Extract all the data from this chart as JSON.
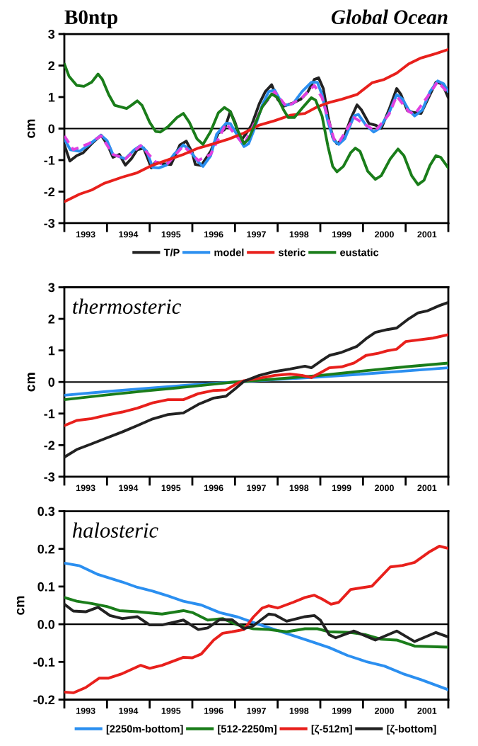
{
  "chart_data": [
    {
      "type": "line",
      "title": "B0ntp",
      "subtitle": "Global Ocean",
      "ylabel": "cm",
      "xlim": [
        1993,
        2002
      ],
      "xticks": [
        {
          "value": 1993,
          "label": null
        },
        {
          "value": 1994,
          "label": null
        },
        {
          "value": 1995,
          "label": null
        },
        {
          "value": 1996,
          "label": null
        },
        {
          "value": 1997,
          "label": null
        },
        {
          "value": 1998,
          "label": null
        },
        {
          "value": 1999,
          "label": null
        },
        {
          "value": 2000,
          "label": null
        },
        {
          "value": 2001,
          "label": null
        },
        {
          "value": 2002,
          "label": null
        },
        {
          "value": 1993.5,
          "label": "1993"
        },
        {
          "value": 1994.5,
          "label": "1994"
        },
        {
          "value": 1995.5,
          "label": "1995"
        },
        {
          "value": 1996.5,
          "label": "1996"
        },
        {
          "value": 1997.5,
          "label": "1997"
        },
        {
          "value": 1998.5,
          "label": "1998"
        },
        {
          "value": 1999.5,
          "label": "1999"
        },
        {
          "value": 2000.5,
          "label": "2000"
        },
        {
          "value": 2001.5,
          "label": "2001"
        }
      ],
      "ylim": [
        -3,
        3
      ],
      "yticks": [
        -3,
        -2,
        -1,
        0,
        1,
        2,
        3
      ],
      "ref_lines": [
        {
          "axis": "y",
          "value": 0,
          "color": "#000000"
        }
      ],
      "legend": "bottom",
      "series": [
        {
          "name": "T/P",
          "color": "#222222",
          "x": [
            1993.0,
            1993.13,
            1993.29,
            1993.44,
            1993.64,
            1993.86,
            1994.0,
            1994.14,
            1994.29,
            1994.43,
            1994.57,
            1994.71,
            1994.86,
            1995.04,
            1995.14,
            1995.29,
            1995.5,
            1995.71,
            1995.86,
            1996.0,
            1996.07,
            1996.21,
            1996.43,
            1996.61,
            1996.75,
            1996.89,
            1997.0,
            1997.14,
            1997.25,
            1997.39,
            1997.57,
            1997.71,
            1997.86,
            1998.0,
            1998.14,
            1998.36,
            1998.54,
            1998.71,
            1998.86,
            1998.96,
            1999.07,
            1999.18,
            1999.29,
            1999.39,
            1999.54,
            1999.71,
            1999.86,
            1999.96,
            2000.14,
            2000.29,
            2000.43,
            2000.61,
            2000.79,
            2000.89,
            2001.04,
            2001.18,
            2001.36,
            2001.5,
            2001.71,
            2001.86,
            2002.0
          ],
          "values": [
            -0.52,
            -1.03,
            -0.86,
            -0.77,
            -0.48,
            -0.21,
            -0.48,
            -0.91,
            -0.82,
            -1.16,
            -0.96,
            -0.67,
            -0.62,
            -1.25,
            -1.06,
            -1.11,
            -1.14,
            -0.52,
            -0.4,
            -0.77,
            -1.14,
            -1.17,
            -0.72,
            -0.14,
            -0.04,
            0.54,
            0.2,
            -0.38,
            -0.18,
            0.11,
            0.79,
            1.17,
            1.39,
            0.93,
            0.71,
            0.81,
            0.93,
            1.17,
            1.56,
            1.61,
            1.27,
            0.4,
            -0.28,
            -0.48,
            -0.33,
            0.3,
            0.75,
            0.6,
            0.16,
            0.11,
            0.01,
            0.6,
            1.27,
            1.08,
            0.57,
            0.51,
            0.48,
            0.88,
            1.47,
            1.42,
            0.98
          ]
        },
        {
          "name": "model",
          "color": "#2b8ff0",
          "x": [
            1993.0,
            1993.14,
            1993.36,
            1993.57,
            1993.86,
            1994.0,
            1994.14,
            1994.43,
            1994.64,
            1994.79,
            1994.93,
            1995.07,
            1995.21,
            1995.39,
            1995.57,
            1995.79,
            1995.93,
            1996.14,
            1996.25,
            1996.43,
            1996.57,
            1996.79,
            1996.89,
            1997.04,
            1997.21,
            1997.32,
            1997.46,
            1997.64,
            1997.79,
            1997.93,
            1998.07,
            1998.18,
            1998.36,
            1998.57,
            1998.79,
            1998.93,
            1999.04,
            1999.18,
            1999.32,
            1999.43,
            1999.57,
            1999.79,
            1999.89,
            2000.07,
            2000.25,
            2000.39,
            2000.61,
            2000.79,
            2000.93,
            2001.07,
            2001.21,
            2001.39,
            2001.57,
            2001.75,
            2001.89,
            2002.0
          ],
          "values": [
            -0.33,
            -0.67,
            -0.72,
            -0.52,
            -0.21,
            -0.38,
            -0.82,
            -0.96,
            -0.67,
            -0.54,
            -0.72,
            -1.23,
            -1.25,
            -1.16,
            -0.82,
            -0.52,
            -0.67,
            -1.06,
            -1.2,
            -0.86,
            -0.18,
            0.17,
            0.16,
            -0.18,
            -0.57,
            -0.48,
            0.01,
            0.75,
            1.17,
            1.22,
            0.88,
            0.74,
            0.79,
            1.17,
            1.47,
            1.47,
            1.08,
            0.2,
            -0.38,
            -0.5,
            -0.33,
            0.4,
            0.45,
            0.11,
            -0.11,
            0.01,
            0.5,
            1.08,
            0.93,
            0.59,
            0.4,
            0.59,
            1.17,
            1.51,
            1.42,
            1.17
          ]
        },
        {
          "color": "#e040e0",
          "line_style": "dashed",
          "x": [
            1993.0,
            1993.21,
            1993.57,
            1993.86,
            1994.14,
            1994.43,
            1994.79,
            1995.14,
            1995.39,
            1995.79,
            1996.14,
            1996.43,
            1996.79,
            1997.21,
            1997.64,
            1997.93,
            1998.21,
            1998.57,
            1998.86,
            1999.04,
            1999.32,
            1999.43,
            1999.79,
            2000.07,
            2000.29,
            2000.61,
            2000.79,
            2001.07,
            2001.21,
            2001.57,
            2001.75,
            2002.0
          ],
          "values": [
            -0.23,
            -0.67,
            -0.48,
            -0.23,
            -0.82,
            -0.96,
            -0.54,
            -1.06,
            -1.16,
            -0.55,
            -1.01,
            -0.82,
            0.16,
            -0.52,
            0.69,
            1.17,
            0.69,
            0.98,
            1.37,
            0.98,
            -0.33,
            -0.45,
            0.35,
            0.11,
            -0.07,
            0.45,
            1.03,
            0.54,
            0.45,
            1.12,
            1.49,
            1.12
          ]
        },
        {
          "name": "steric",
          "color": "#e8201c",
          "x": [
            1993.0,
            1993.36,
            1993.64,
            1993.93,
            1994.36,
            1994.71,
            1995.07,
            1995.5,
            1995.79,
            1996.14,
            1996.5,
            1996.86,
            1997.21,
            1997.57,
            1997.93,
            1998.29,
            1998.64,
            1998.93,
            1999.21,
            1999.5,
            1999.86,
            2000.21,
            2000.5,
            2000.79,
            2001.07,
            2001.36,
            2001.71,
            2002.0
          ],
          "values": [
            -2.32,
            -2.08,
            -1.95,
            -1.74,
            -1.54,
            -1.4,
            -1.16,
            -0.96,
            -0.82,
            -0.62,
            -0.48,
            -0.33,
            -0.14,
            0.11,
            0.25,
            0.42,
            0.48,
            0.69,
            0.83,
            0.93,
            1.08,
            1.45,
            1.56,
            1.76,
            2.05,
            2.24,
            2.38,
            2.51
          ]
        },
        {
          "name": "eustatic",
          "color": "#1a7d1a",
          "x": [
            1993.0,
            1993.11,
            1993.29,
            1993.46,
            1993.64,
            1993.79,
            1993.89,
            1994.04,
            1994.18,
            1994.46,
            1994.57,
            1994.71,
            1994.82,
            1995.0,
            1995.14,
            1995.25,
            1995.43,
            1995.64,
            1995.79,
            1995.93,
            1996.11,
            1996.25,
            1996.43,
            1996.61,
            1996.75,
            1996.89,
            1997.04,
            1997.21,
            1997.32,
            1997.46,
            1997.64,
            1997.86,
            1998.0,
            1998.14,
            1998.25,
            1998.39,
            1998.57,
            1998.79,
            1998.89,
            1999.04,
            1999.18,
            1999.29,
            1999.39,
            1999.54,
            1999.71,
            1999.82,
            1999.93,
            2000.11,
            2000.29,
            2000.43,
            2000.64,
            2000.82,
            2000.96,
            2001.14,
            2001.29,
            2001.43,
            2001.57,
            2001.71,
            2001.82,
            2002.0
          ],
          "values": [
            2.05,
            1.66,
            1.37,
            1.34,
            1.47,
            1.73,
            1.56,
            1.08,
            0.74,
            0.64,
            0.74,
            0.88,
            0.74,
            0.2,
            -0.09,
            -0.11,
            0.06,
            0.35,
            0.48,
            0.2,
            -0.33,
            -0.5,
            -0.09,
            0.5,
            0.67,
            0.54,
            0.01,
            -0.48,
            -0.33,
            0.11,
            0.69,
            1.1,
            0.98,
            0.59,
            0.35,
            0.35,
            0.64,
            0.98,
            0.9,
            0.4,
            -0.57,
            -1.2,
            -1.37,
            -1.2,
            -0.77,
            -0.62,
            -0.72,
            -1.35,
            -1.61,
            -1.49,
            -0.96,
            -0.65,
            -0.86,
            -1.49,
            -1.78,
            -1.64,
            -1.17,
            -0.86,
            -0.91,
            -1.25
          ]
        }
      ]
    },
    {
      "type": "line",
      "ylabel": "cm",
      "annotations": [
        "thermosteric"
      ],
      "xlim": [
        1993,
        2002
      ],
      "xticks": [
        {
          "value": 1993,
          "label": null
        },
        {
          "value": 1994,
          "label": null
        },
        {
          "value": 1995,
          "label": null
        },
        {
          "value": 1996,
          "label": null
        },
        {
          "value": 1997,
          "label": null
        },
        {
          "value": 1998,
          "label": null
        },
        {
          "value": 1999,
          "label": null
        },
        {
          "value": 2000,
          "label": null
        },
        {
          "value": 2001,
          "label": null
        },
        {
          "value": 2002,
          "label": null
        },
        {
          "value": 1993.5,
          "label": "1993"
        },
        {
          "value": 1994.5,
          "label": "1994"
        },
        {
          "value": 1995.5,
          "label": "1995"
        },
        {
          "value": 1996.5,
          "label": "1996"
        },
        {
          "value": 1997.5,
          "label": "1997"
        },
        {
          "value": 1998.5,
          "label": "1998"
        },
        {
          "value": 1999.5,
          "label": "1999"
        },
        {
          "value": 2000.5,
          "label": "2000"
        },
        {
          "value": 2001.5,
          "label": "2001"
        }
      ],
      "ylim": [
        -3,
        3
      ],
      "yticks": [
        -3,
        -2,
        -1,
        0,
        1,
        2,
        3
      ],
      "ref_lines": [
        {
          "axis": "y",
          "value": 0,
          "color": "#000000"
        }
      ],
      "series": [
        {
          "color": "#2b8ff0",
          "x": [
            1993.0,
            1993.93,
            1994.93,
            1996.0,
            1997.0,
            1998.0,
            1999.0,
            2000.0,
            2001.0,
            2002.0
          ],
          "values": [
            -0.42,
            -0.31,
            -0.2,
            -0.09,
            0.0,
            0.08,
            0.16,
            0.25,
            0.35,
            0.45
          ]
        },
        {
          "color": "#1a7d1a",
          "x": [
            1993.0,
            1993.93,
            1994.93,
            1996.0,
            1997.0,
            1998.0,
            1999.0,
            2000.0,
            2001.0,
            2002.0
          ],
          "values": [
            -0.56,
            -0.42,
            -0.28,
            -0.14,
            0.0,
            0.1,
            0.21,
            0.35,
            0.48,
            0.6
          ]
        },
        {
          "color": "#e8201c",
          "x": [
            1993.0,
            1993.29,
            1993.64,
            1994.0,
            1994.36,
            1994.71,
            1995.07,
            1995.43,
            1995.79,
            1996.14,
            1996.5,
            1996.79,
            1997.07,
            1997.21,
            1997.57,
            1997.93,
            1998.29,
            1998.57,
            1998.79,
            1999.0,
            1999.21,
            1999.5,
            1999.79,
            2000.07,
            2000.36,
            2000.57,
            2000.79,
            2001.0,
            2001.29,
            2001.64,
            2002.0
          ],
          "values": [
            -1.38,
            -1.22,
            -1.16,
            -1.05,
            -0.95,
            -0.83,
            -0.66,
            -0.56,
            -0.56,
            -0.37,
            -0.27,
            -0.25,
            -0.03,
            0.04,
            0.12,
            0.21,
            0.25,
            0.21,
            0.14,
            0.29,
            0.45,
            0.48,
            0.6,
            0.84,
            0.91,
            0.99,
            1.04,
            1.28,
            1.33,
            1.39,
            1.5
          ]
        },
        {
          "color": "#222222",
          "x": [
            1993.0,
            1993.29,
            1993.64,
            1994.0,
            1994.36,
            1994.71,
            1995.07,
            1995.43,
            1995.79,
            1996.14,
            1996.5,
            1996.79,
            1997.0,
            1997.21,
            1997.57,
            1997.93,
            1998.29,
            1998.64,
            1998.79,
            1999.0,
            1999.21,
            1999.5,
            1999.86,
            2000.07,
            2000.29,
            2000.57,
            2000.79,
            2001.07,
            2001.29,
            2001.5,
            2001.79,
            2002.0
          ],
          "values": [
            -2.38,
            -2.14,
            -1.96,
            -1.77,
            -1.58,
            -1.38,
            -1.17,
            -1.03,
            -0.98,
            -0.71,
            -0.51,
            -0.45,
            -0.22,
            0.02,
            0.21,
            0.33,
            0.41,
            0.5,
            0.45,
            0.65,
            0.84,
            0.94,
            1.13,
            1.37,
            1.57,
            1.66,
            1.71,
            2.0,
            2.19,
            2.25,
            2.42,
            2.52
          ]
        }
      ]
    },
    {
      "type": "line",
      "ylabel": "cm",
      "annotations": [
        "halosteric"
      ],
      "xlim": [
        1993,
        2002
      ],
      "xticks": [
        {
          "value": 1993,
          "label": null
        },
        {
          "value": 1994,
          "label": null
        },
        {
          "value": 1995,
          "label": null
        },
        {
          "value": 1996,
          "label": null
        },
        {
          "value": 1997,
          "label": null
        },
        {
          "value": 1998,
          "label": null
        },
        {
          "value": 1999,
          "label": null
        },
        {
          "value": 2000,
          "label": null
        },
        {
          "value": 2001,
          "label": null
        },
        {
          "value": 2002,
          "label": null
        },
        {
          "value": 1993.5,
          "label": "1993"
        },
        {
          "value": 1994.5,
          "label": "1994"
        },
        {
          "value": 1995.5,
          "label": "1995"
        },
        {
          "value": 1996.5,
          "label": "1996"
        },
        {
          "value": 1997.5,
          "label": "1997"
        },
        {
          "value": 1998.5,
          "label": "1998"
        },
        {
          "value": 1999.5,
          "label": "1999"
        },
        {
          "value": 2000.5,
          "label": "2000"
        },
        {
          "value": 2001.5,
          "label": "2001"
        }
      ],
      "ylim": [
        -0.2,
        0.3
      ],
      "yticks": [
        -0.2,
        -0.1,
        {
          "value": 0,
          "label": "0.0"
        },
        0.1,
        0.2,
        0.3
      ],
      "ref_lines": [
        {
          "axis": "y",
          "value": 0,
          "color": "#000000"
        }
      ],
      "legend": "bottom",
      "series": [
        {
          "name": "[2250m-bottom]",
          "color": "#2b8ff0",
          "x": [
            1993.0,
            1993.36,
            1993.79,
            1994.36,
            1994.71,
            1995.07,
            1995.43,
            1995.79,
            1996.21,
            1996.64,
            1997.07,
            1997.5,
            1997.93,
            1998.36,
            1998.79,
            1999.21,
            1999.64,
            2000.07,
            2000.5,
            2000.93,
            2001.36,
            2002.0
          ],
          "values": [
            0.162,
            0.155,
            0.132,
            0.112,
            0.098,
            0.088,
            0.075,
            0.061,
            0.051,
            0.031,
            0.019,
            0.002,
            -0.014,
            -0.03,
            -0.046,
            -0.062,
            -0.083,
            -0.099,
            -0.111,
            -0.131,
            -0.147,
            -0.174
          ]
        },
        {
          "name": "[512-2250m]",
          "color": "#1a7d1a",
          "x": [
            1993.0,
            1993.29,
            1993.64,
            1994.0,
            1994.29,
            1994.71,
            1995.29,
            1995.79,
            1996.0,
            1996.36,
            1996.71,
            1997.07,
            1997.43,
            1997.79,
            1998.21,
            1998.64,
            1998.93,
            1999.21,
            1999.71,
            2000.07,
            2000.43,
            2000.79,
            2001.21,
            2002.0
          ],
          "values": [
            0.071,
            0.061,
            0.055,
            0.047,
            0.036,
            0.033,
            0.027,
            0.036,
            0.031,
            0.011,
            0.015,
            -0.002,
            -0.012,
            -0.014,
            -0.02,
            -0.012,
            -0.012,
            -0.02,
            -0.022,
            -0.028,
            -0.04,
            -0.042,
            -0.058,
            -0.061
          ]
        },
        {
          "name": "[ζ-512m]",
          "color": "#e8201c",
          "x": [
            1993.0,
            1993.21,
            1993.5,
            1993.82,
            1994.04,
            1994.36,
            1994.79,
            1995.0,
            1995.29,
            1995.79,
            1996.0,
            1996.21,
            1996.5,
            1996.71,
            1996.93,
            1997.21,
            1997.43,
            1997.64,
            1997.79,
            1998.0,
            1998.36,
            1998.64,
            1998.86,
            1999.04,
            1999.25,
            1999.43,
            1999.71,
            1999.93,
            2000.21,
            2000.64,
            2000.93,
            2001.21,
            2001.57,
            2001.79,
            2002.0
          ],
          "values": [
            -0.18,
            -0.182,
            -0.168,
            -0.143,
            -0.143,
            -0.131,
            -0.109,
            -0.117,
            -0.109,
            -0.088,
            -0.089,
            -0.079,
            -0.042,
            -0.024,
            -0.02,
            -0.014,
            0.019,
            0.043,
            0.049,
            0.043,
            0.058,
            0.071,
            0.077,
            0.067,
            0.053,
            0.058,
            0.092,
            0.096,
            0.101,
            0.152,
            0.156,
            0.164,
            0.193,
            0.207,
            0.201
          ]
        },
        {
          "name": "[ζ-bottom]",
          "color": "#222222",
          "x": [
            1993.0,
            1993.21,
            1993.5,
            1993.79,
            1994.07,
            1994.36,
            1994.71,
            1995.0,
            1995.29,
            1995.79,
            1996.14,
            1996.36,
            1996.64,
            1996.93,
            1997.21,
            1997.43,
            1997.79,
            1997.93,
            1998.21,
            1998.64,
            1998.86,
            1999.0,
            1999.21,
            1999.36,
            1999.79,
            2000.29,
            2000.79,
            2001.21,
            2001.71,
            2002.0
          ],
          "values": [
            0.053,
            0.035,
            0.033,
            0.045,
            0.023,
            0.015,
            0.02,
            -0.002,
            -0.002,
            0.011,
            -0.014,
            -0.01,
            0.012,
            0.012,
            -0.012,
            -0.004,
            0.027,
            0.025,
            0.008,
            0.02,
            0.023,
            0.011,
            -0.028,
            -0.036,
            -0.018,
            -0.042,
            -0.018,
            -0.046,
            -0.022,
            -0.034
          ]
        }
      ]
    }
  ]
}
